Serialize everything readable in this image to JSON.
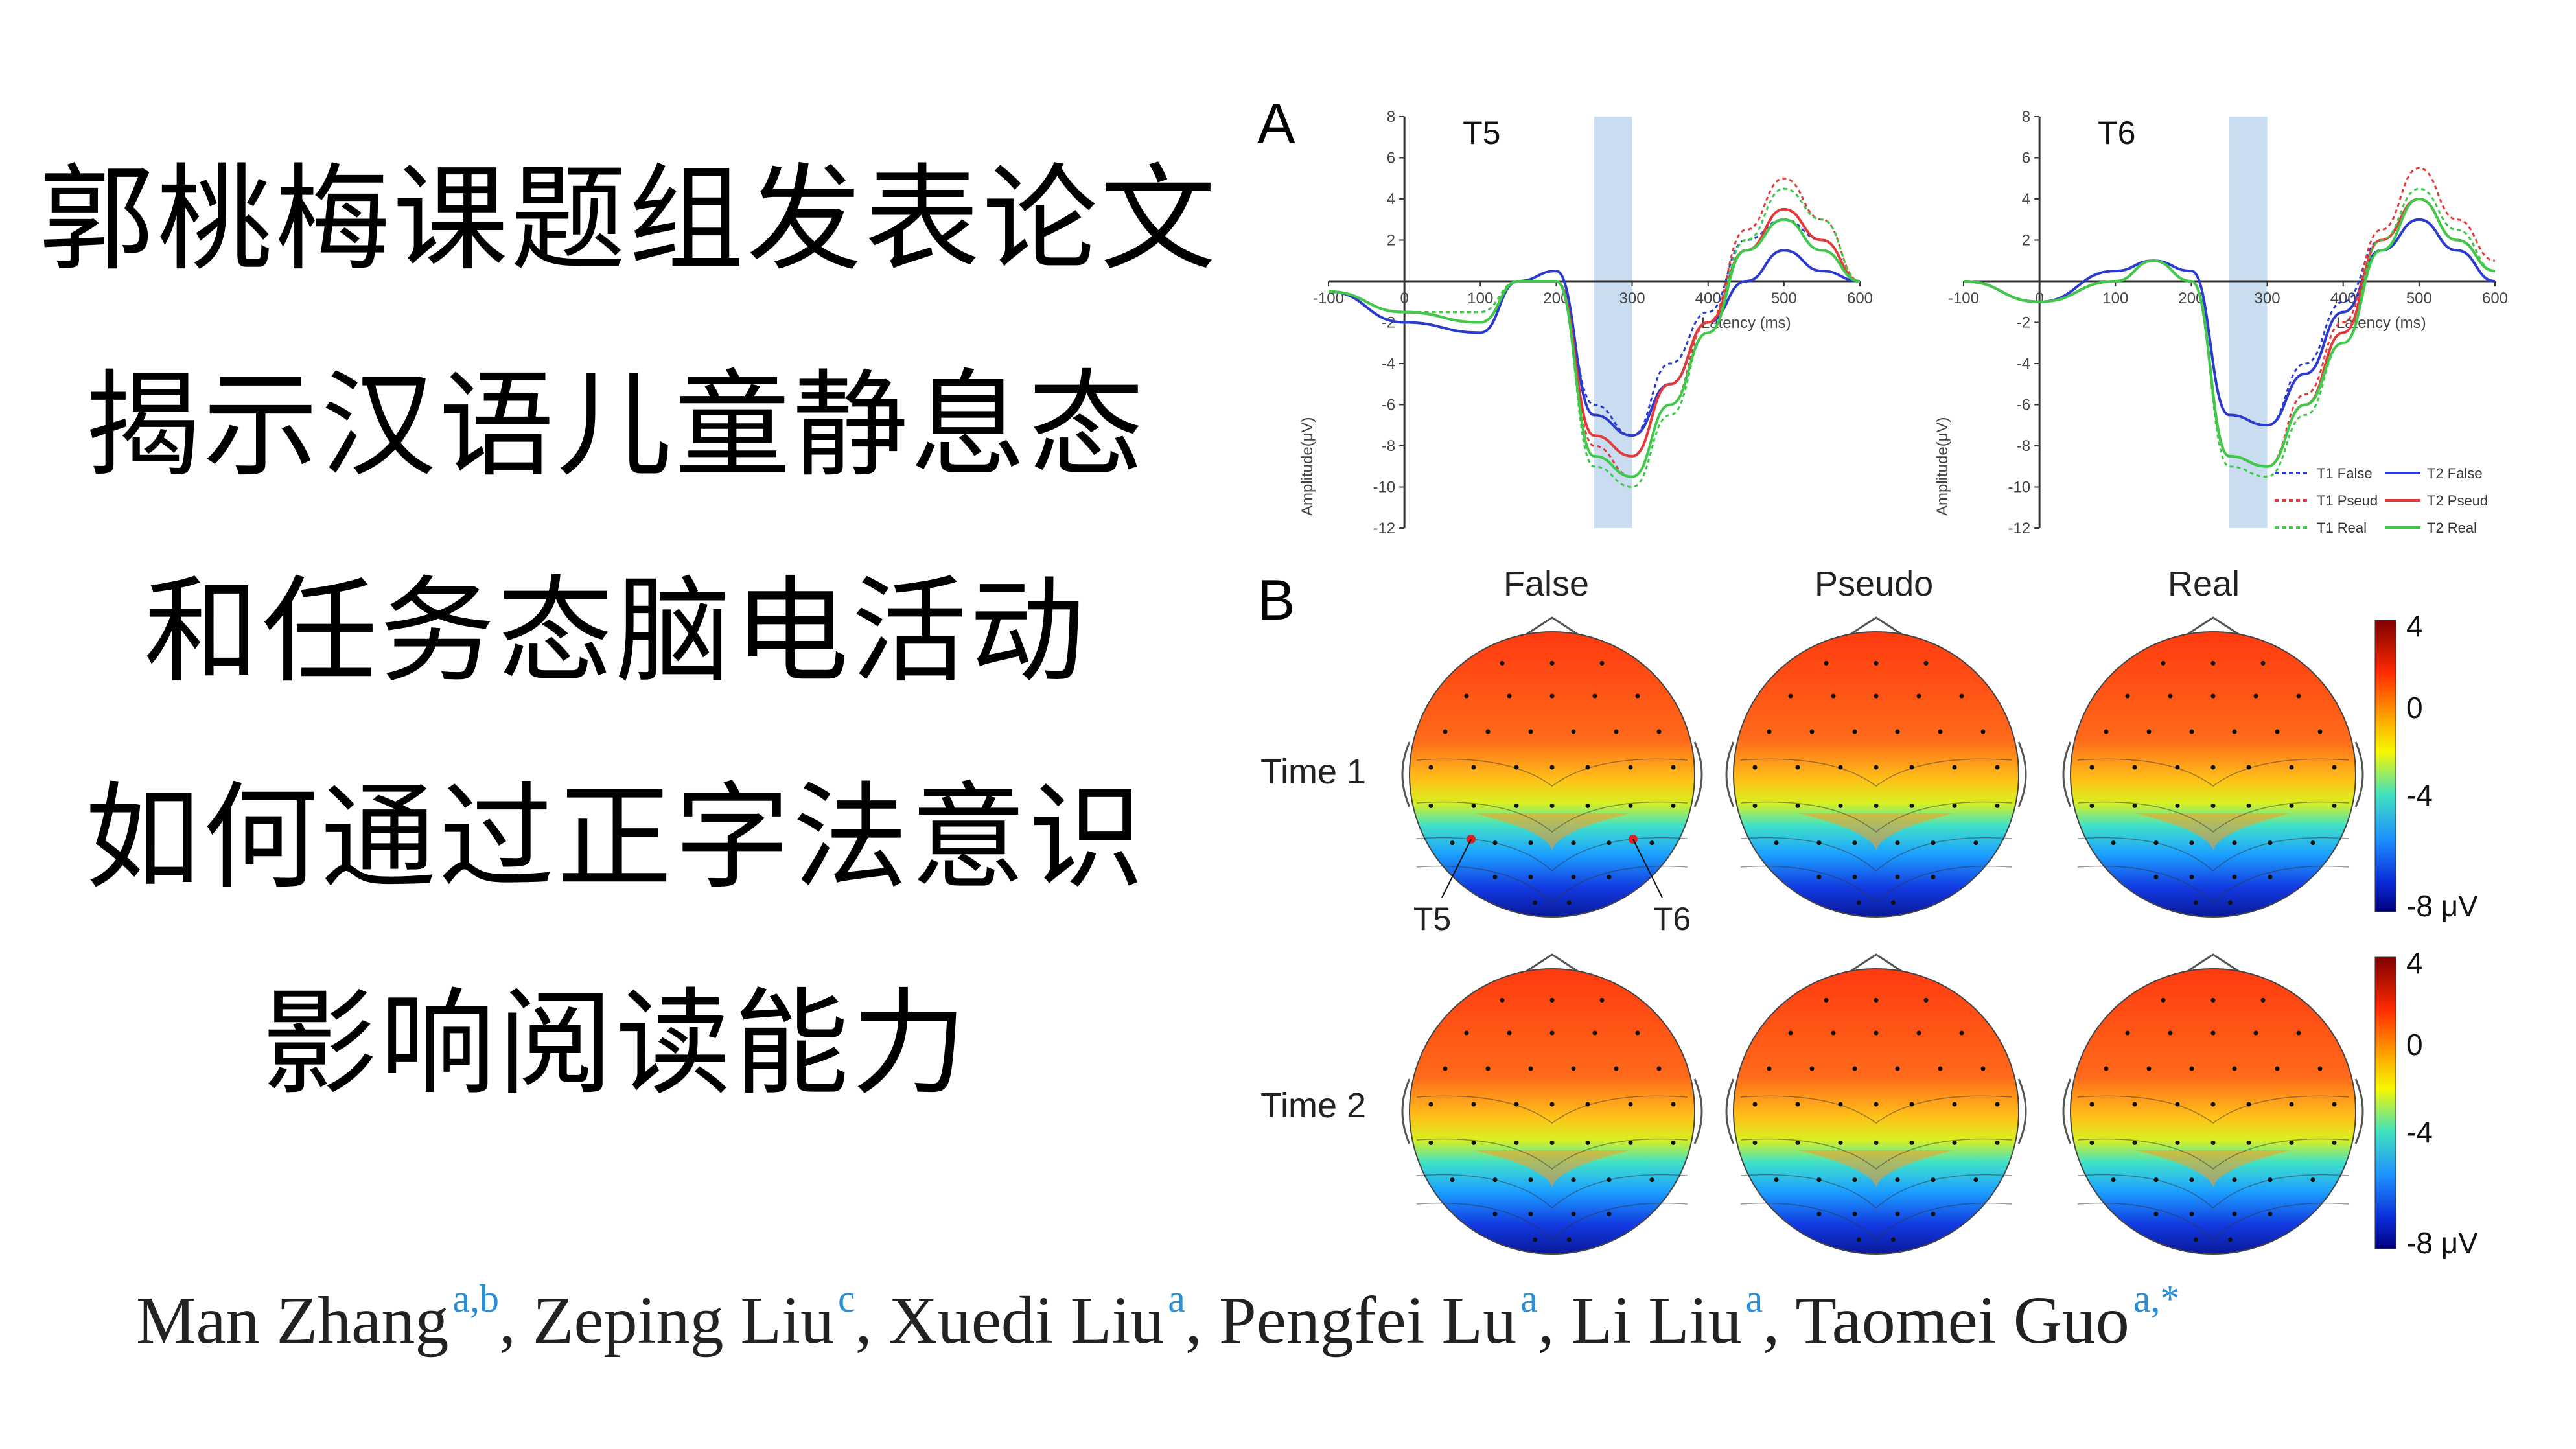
{
  "title_lines": [
    "郭桃梅课题组发表论文",
    "揭示汉语儿童静息态",
    "和任务态脑电活动",
    "如何通过正字法意识",
    "影响阅读能力"
  ],
  "figure": {
    "panel_a_letter": "A",
    "panel_b_letter": "B",
    "erp_panels": [
      {
        "label": "T5"
      },
      {
        "label": "T6"
      }
    ],
    "x_ticks": [
      "-100",
      "0",
      "100",
      "200",
      "300",
      "400",
      "500",
      "600"
    ],
    "y_ticks": [
      "8",
      "6",
      "4",
      "2",
      "",
      "-2",
      "-4",
      "-6",
      "-8",
      "-10",
      "-12"
    ],
    "xlabel": "Latency (ms)",
    "ylabel": "Amplitude(μV)",
    "legend": [
      "T1 False",
      "T2 False",
      "T1 Pseud",
      "T2 Pseud",
      "T1 Real",
      "T2 Real"
    ],
    "colors": {
      "false": "#2b3bd0",
      "pseudo": "#e33b3b",
      "real": "#3fc94a",
      "shade": "#c9dcf0"
    },
    "topo_columns": [
      "False",
      "Pseudo",
      "Real"
    ],
    "topo_rows": [
      "Time 1",
      "Time 2"
    ],
    "electrode_labels": [
      "T5",
      "T6"
    ],
    "colorbar_ticks": [
      "4",
      "0",
      "-4",
      "-8 μV"
    ]
  },
  "chart_data": [
    {
      "type": "line",
      "title": "T5",
      "xlabel": "Latency (ms)",
      "ylabel": "Amplitude(μV)",
      "xlim": [
        -100,
        600
      ],
      "ylim": [
        -12,
        8
      ],
      "highlight_window": [
        250,
        300
      ],
      "x": [
        -100,
        0,
        100,
        150,
        200,
        250,
        300,
        350,
        400,
        450,
        500,
        550,
        600
      ],
      "series": [
        {
          "name": "T1 False",
          "values": [
            -0.5,
            -1.5,
            -1.5,
            0,
            0,
            -6,
            -7.5,
            -4,
            -1.5,
            2,
            3,
            2,
            0
          ]
        },
        {
          "name": "T2 False",
          "values": [
            -0.5,
            -2,
            -2.5,
            0,
            0.5,
            -6.5,
            -7.5,
            -5,
            -2,
            0,
            1.5,
            0.5,
            0
          ]
        },
        {
          "name": "T1 Pseud",
          "values": [
            -0.5,
            -1.5,
            -1.5,
            0,
            0,
            -8,
            -9.5,
            -6,
            -2,
            2.5,
            5,
            3,
            0
          ]
        },
        {
          "name": "T2 Pseud",
          "values": [
            -0.5,
            -1.5,
            -2,
            0,
            0,
            -7.5,
            -8.5,
            -5,
            -2,
            1.5,
            3.5,
            2,
            0
          ]
        },
        {
          "name": "T1 Real",
          "values": [
            -0.5,
            -1.5,
            -1.5,
            0,
            0,
            -9,
            -10,
            -6.5,
            -2.5,
            2,
            4.5,
            3,
            0
          ]
        },
        {
          "name": "T2 Real",
          "values": [
            -0.5,
            -1.5,
            -2,
            0,
            0,
            -8.5,
            -9.5,
            -6,
            -2.5,
            1.5,
            3,
            1.5,
            0
          ]
        }
      ]
    },
    {
      "type": "line",
      "title": "T6",
      "xlabel": "Latency (ms)",
      "ylabel": "Amplitude(μV)",
      "xlim": [
        -100,
        600
      ],
      "ylim": [
        -12,
        8
      ],
      "highlight_window": [
        250,
        300
      ],
      "x": [
        -100,
        0,
        100,
        150,
        200,
        250,
        300,
        350,
        400,
        450,
        500,
        550,
        600
      ],
      "series": [
        {
          "name": "T1 False",
          "values": [
            0,
            -1,
            0,
            1,
            0.5,
            -6.5,
            -7,
            -4,
            -1,
            2,
            4,
            2,
            0.5
          ]
        },
        {
          "name": "T2 False",
          "values": [
            0,
            -1,
            0.5,
            1,
            0.5,
            -6.5,
            -7,
            -4.5,
            -1.5,
            1.5,
            3,
            1.5,
            0
          ]
        },
        {
          "name": "T1 Pseud",
          "values": [
            0,
            -1,
            0,
            1,
            0,
            -8.5,
            -9,
            -5.5,
            -2,
            2.5,
            5.5,
            3,
            1
          ]
        },
        {
          "name": "T2 Pseud",
          "values": [
            0,
            -1,
            0,
            1,
            0,
            -8.5,
            -9,
            -6,
            -2.5,
            2,
            4,
            2,
            0.5
          ]
        },
        {
          "name": "T1 Real",
          "values": [
            0,
            -1,
            0,
            1,
            0,
            -9,
            -9.5,
            -6.5,
            -3,
            2,
            4.5,
            2.5,
            0.5
          ]
        },
        {
          "name": "T2 Real",
          "values": [
            0,
            -1,
            0,
            1,
            0,
            -8.5,
            -9,
            -6,
            -3,
            1.5,
            4,
            2,
            0.5
          ]
        }
      ]
    }
  ],
  "authors": [
    {
      "name": "Man Zhang",
      "aff": "a,b"
    },
    {
      "name": "Zeping Liu",
      "aff": "c"
    },
    {
      "name": "Xuedi Liu",
      "aff": "a"
    },
    {
      "name": "Pengfei Lu",
      "aff": "a"
    },
    {
      "name": "Li Liu",
      "aff": "a"
    },
    {
      "name": "Taomei Guo",
      "aff": "a,*"
    }
  ]
}
